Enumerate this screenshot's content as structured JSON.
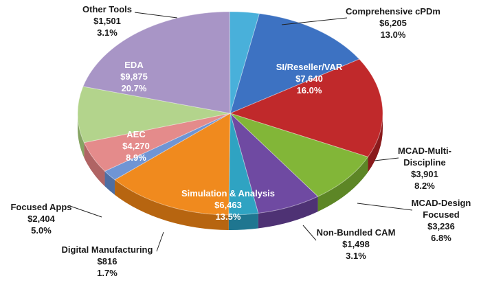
{
  "chart_data": {
    "type": "pie",
    "title": "",
    "slices": [
      {
        "name": "Comprehensive cPDm",
        "value": "$6,205",
        "percent": "13.0%",
        "amount": 6205,
        "pct": 13.0,
        "color": "#3d72c2",
        "side": "#2a528f"
      },
      {
        "name": "SI/Reseller/VAR",
        "value": "$7,640",
        "percent": "16.0%",
        "amount": 7640,
        "pct": 16.0,
        "color": "#c0292b",
        "side": "#8a1a1c"
      },
      {
        "name": "MCAD-Multi-Discipline",
        "value": "$3,901",
        "percent": "8.2%",
        "amount": 3901,
        "pct": 8.2,
        "color": "#82b638",
        "side": "#5d8626"
      },
      {
        "name": "MCAD-Design Focused",
        "value": "$3,236",
        "percent": "6.8%",
        "amount": 3236,
        "pct": 6.8,
        "color": "#6f4aa2",
        "side": "#4e3274"
      },
      {
        "name": "Non-Bundled CAM",
        "value": "$1,498",
        "percent": "3.1%",
        "amount": 1498,
        "pct": 3.1,
        "color": "#2fa3c2",
        "side": "#1f7690"
      },
      {
        "name": "Simulation & Analysis",
        "value": "$6,463",
        "percent": "13.5%",
        "amount": 6463,
        "pct": 13.5,
        "color": "#f08a1e",
        "side": "#b76510"
      },
      {
        "name": "Digital Manufacturing",
        "value": "$816",
        "percent": "1.7%",
        "amount": 816,
        "pct": 1.7,
        "color": "#6f95d4",
        "side": "#4e6ea3"
      },
      {
        "name": "Focused Apps",
        "value": "$2,404",
        "percent": "5.0%",
        "amount": 2404,
        "pct": 5.0,
        "color": "#e48b8b",
        "side": "#b06464"
      },
      {
        "name": "AEC",
        "value": "$4,270",
        "percent": "8.9%",
        "amount": 4270,
        "pct": 8.9,
        "color": "#b3d48c",
        "side": "#86a463"
      },
      {
        "name": "EDA",
        "value": "$9,875",
        "percent": "20.7%",
        "amount": 9875,
        "pct": 20.7,
        "color": "#a895c6",
        "side": "#7c6b98"
      },
      {
        "name": "Other Tools",
        "value": "$1,501",
        "percent": "3.1%",
        "amount": 1501,
        "pct": 3.1,
        "color": "#49b0da",
        "side": "#3585a6"
      }
    ]
  }
}
